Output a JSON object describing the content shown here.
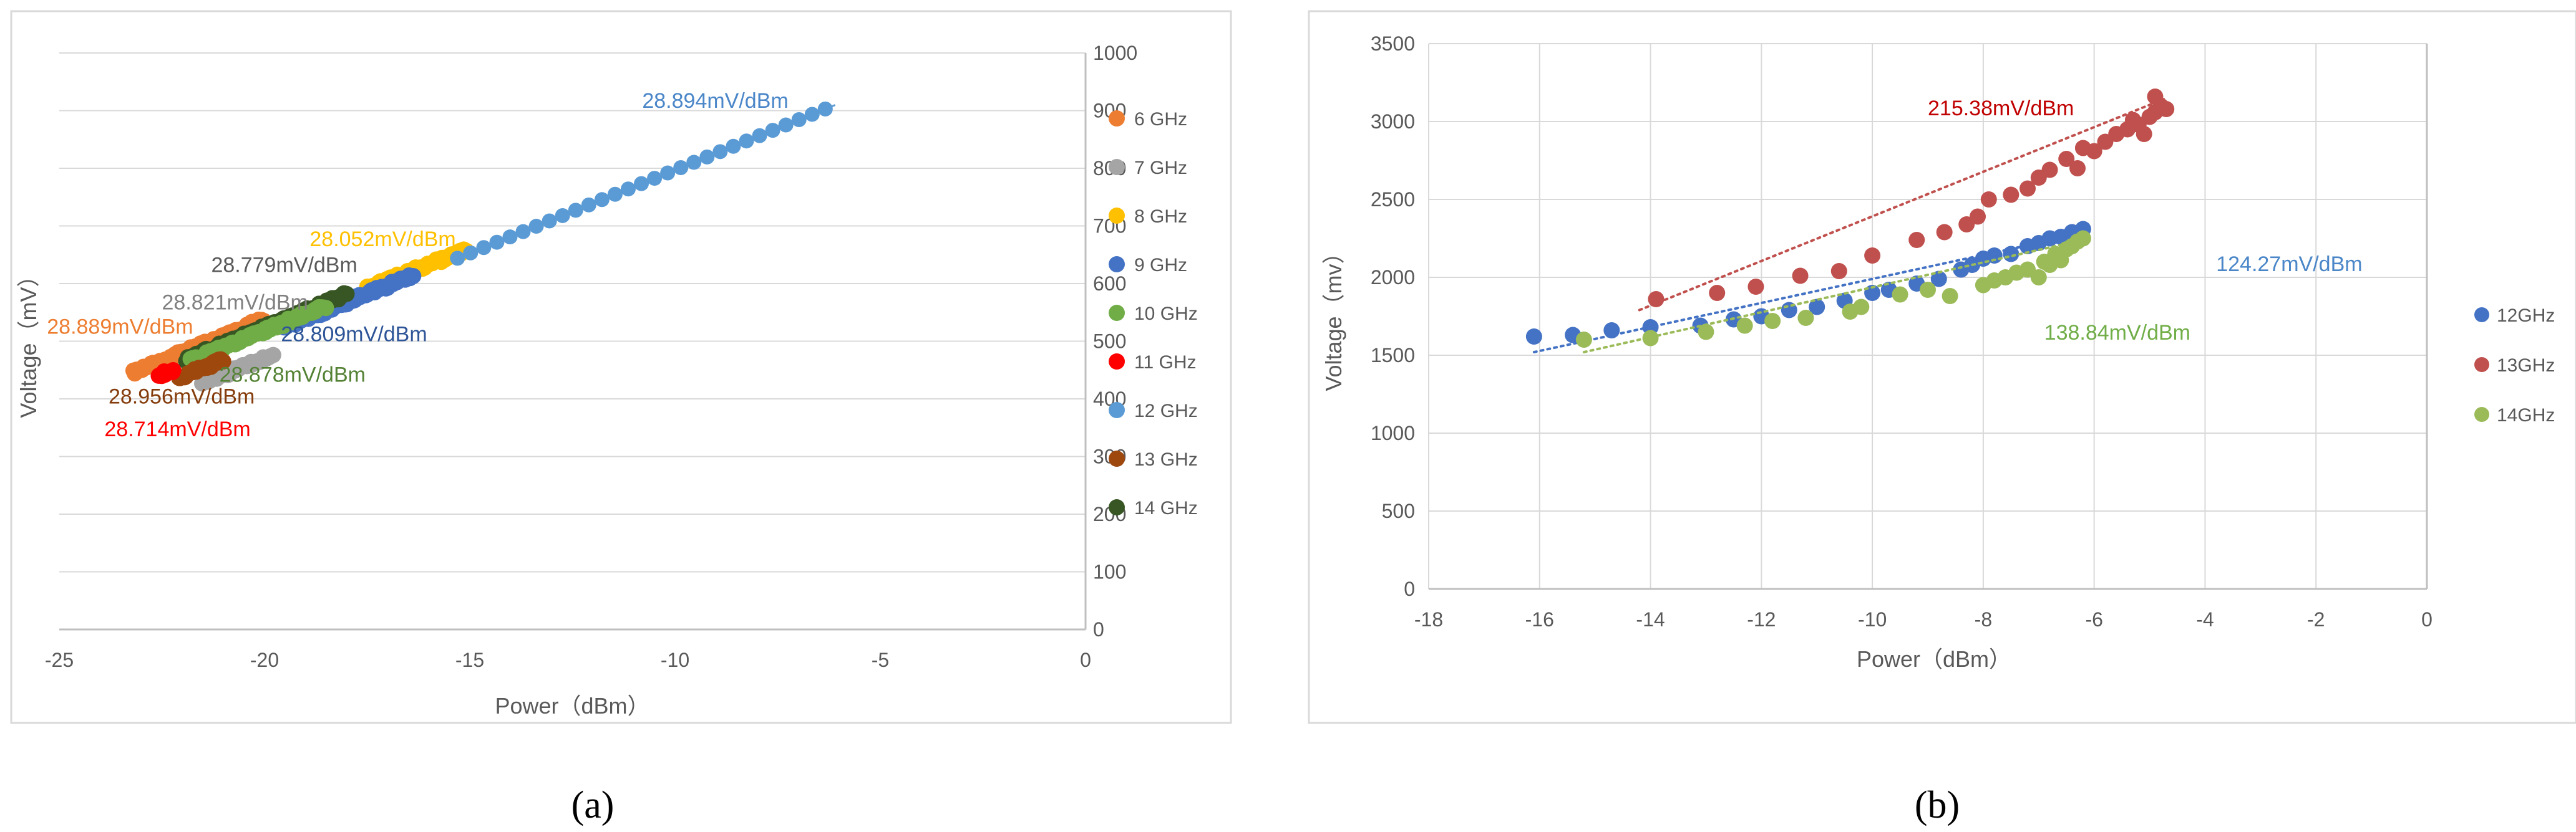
{
  "panels": [
    {
      "label": "(a)"
    },
    {
      "label": "(b)"
    }
  ],
  "chart_data": [
    {
      "type": "scatter",
      "xlabel": "Power（dBm）",
      "ylabel": "Voltage（mV）",
      "xlim": [
        -25,
        0
      ],
      "ylim": [
        0,
        1000
      ],
      "xticks": [
        -25,
        -20,
        -15,
        -10,
        -5,
        0
      ],
      "yticks": [
        0,
        100,
        200,
        300,
        400,
        500,
        600,
        700,
        800,
        900,
        1000
      ],
      "x_tick_labels": [
        "-25",
        "-20",
        "-15",
        "-10",
        "-5",
        "0"
      ],
      "y_tick_labels": [
        "0",
        "100",
        "200",
        "300",
        "400",
        "500",
        "600",
        "700",
        "800",
        "900",
        "1000"
      ],
      "y_axis_side": "right",
      "grid": "horizontal",
      "legend_position": "right",
      "series": [
        {
          "name": "6 GHz",
          "color": "#ed7d31",
          "x_range": [
            -23.2,
            -20.0
          ],
          "slope": 28.889,
          "intercept": 1116,
          "trendline": false,
          "annotation": "28.889mV/dBm"
        },
        {
          "name": "7 GHz",
          "color": "#a5a5a5",
          "x_range": [
            -21.5,
            -19.8
          ],
          "slope": 28.821,
          "intercept": 1047,
          "trendline": false,
          "annotation": "28.821mV/dBm"
        },
        {
          "name": "8 GHz",
          "color": "#ffc000",
          "x_range": [
            -17.5,
            -15.1
          ],
          "slope": 28.052,
          "intercept": 1082,
          "trendline": false,
          "annotation": "28.052mV/dBm"
        },
        {
          "name": "9 GHz",
          "color": "#4472c4",
          "x_range": [
            -19.5,
            -16.4
          ],
          "slope": 28.809,
          "intercept": 1086,
          "trendline": false,
          "annotation": "28.809mV/dBm"
        },
        {
          "name": "10 GHz",
          "color": "#70ad47",
          "x_range": [
            -21.8,
            -18.5
          ],
          "slope": 28.878,
          "intercept": 1095,
          "trendline": false,
          "annotation": "28.878mV/dBm"
        },
        {
          "name": "11 GHz",
          "color": "#ff0000",
          "x_range": [
            -22.6,
            -22.2
          ],
          "slope": 28.714,
          "intercept": 1089,
          "trendline": false,
          "annotation": "28.714mV/dBm"
        },
        {
          "name": "12 GHz",
          "color": "#5b9bd5",
          "x_range": [
            -15.3,
            -6.1
          ],
          "slope": 28.894,
          "intercept": 1086,
          "trendline": true,
          "annotation": "28.894mV/dBm"
        },
        {
          "name": "13 GHz",
          "color": "#9e480e",
          "x_range": [
            -22.1,
            -21.0
          ],
          "slope": 28.956,
          "intercept": 1076,
          "trendline": false,
          "annotation": "28.956mV/dBm"
        },
        {
          "name": "14 GHz",
          "color": "#375623",
          "x_range": [
            -21.9,
            -18.0
          ],
          "slope": 28.779,
          "intercept": 1099,
          "trendline": false,
          "annotation": "28.779mV/dBm"
        }
      ],
      "annotations": [
        {
          "text": "28.894mV/dBm",
          "color": "#4a86c8",
          "x": -10.8,
          "y": 905
        },
        {
          "text": "28.052mV/dBm",
          "color": "#ffc000",
          "x": -18.9,
          "y": 665
        },
        {
          "text": "28.779mV/dBm",
          "color": "#595959",
          "x": -21.3,
          "y": 620
        },
        {
          "text": "28.821mV/dBm",
          "color": "#7f7f7f",
          "x": -22.5,
          "y": 555
        },
        {
          "text": "28.809mV/dBm",
          "color": "#2e5597",
          "x": -19.6,
          "y": 500
        },
        {
          "text": "28.889mV/dBm",
          "color": "#ed7d31",
          "x": -25.3,
          "y": 513
        },
        {
          "text": "28.878mV/dBm",
          "color": "#548235",
          "x": -21.1,
          "y": 430
        },
        {
          "text": "28.956mV/dBm",
          "color": "#843c0c",
          "x": -23.8,
          "y": 392
        },
        {
          "text": "28.714mV/dBm",
          "color": "#ff0000",
          "x": -23.9,
          "y": 335
        }
      ]
    },
    {
      "type": "scatter",
      "xlabel": "Power（dBm）",
      "ylabel": "Voltage（mv）",
      "xlim": [
        -18,
        0
      ],
      "ylim": [
        0,
        3500
      ],
      "xticks": [
        -18,
        -16,
        -14,
        -12,
        -10,
        -8,
        -6,
        -4,
        -2,
        0
      ],
      "yticks": [
        0,
        500,
        1000,
        1500,
        2000,
        2500,
        3000,
        3500
      ],
      "x_tick_labels": [
        "-18",
        "-16",
        "-14",
        "-12",
        "-10",
        "-8",
        "-6",
        "-4",
        "-2",
        "0"
      ],
      "y_tick_labels": [
        "0",
        "500",
        "1000",
        "1500",
        "2000",
        "2500",
        "3000",
        "3500"
      ],
      "grid": "both",
      "legend_position": "right",
      "series": [
        {
          "name": "12GHz",
          "color": "#4472c4",
          "annotation": "124.27mV/dBm",
          "trendline": {
            "x": [
              -16.1,
              -6.1
            ],
            "y": [
              1520,
              2290
            ]
          },
          "points": [
            [
              -16.1,
              1620
            ],
            [
              -15.4,
              1630
            ],
            [
              -14.7,
              1660
            ],
            [
              -14.0,
              1680
            ],
            [
              -13.1,
              1690
            ],
            [
              -12.5,
              1730
            ],
            [
              -12.0,
              1750
            ],
            [
              -11.5,
              1790
            ],
            [
              -11.0,
              1810
            ],
            [
              -10.5,
              1850
            ],
            [
              -10.0,
              1900
            ],
            [
              -9.7,
              1920
            ],
            [
              -9.2,
              1960
            ],
            [
              -8.8,
              1990
            ],
            [
              -8.4,
              2050
            ],
            [
              -8.2,
              2080
            ],
            [
              -8.0,
              2120
            ],
            [
              -7.8,
              2140
            ],
            [
              -7.5,
              2150
            ],
            [
              -7.2,
              2200
            ],
            [
              -7.0,
              2220
            ],
            [
              -6.8,
              2250
            ],
            [
              -6.6,
              2260
            ],
            [
              -6.4,
              2290
            ],
            [
              -6.2,
              2310
            ]
          ]
        },
        {
          "name": "13GHz",
          "color": "#c0504d",
          "annotation": "215.38mV/dBm",
          "trendline": {
            "x": [
              -14.2,
              -4.7
            ],
            "y": [
              1790,
              3150
            ]
          },
          "points": [
            [
              -13.9,
              1860
            ],
            [
              -12.8,
              1900
            ],
            [
              -12.1,
              1940
            ],
            [
              -11.3,
              2010
            ],
            [
              -10.6,
              2040
            ],
            [
              -10.0,
              2140
            ],
            [
              -9.2,
              2240
            ],
            [
              -8.7,
              2290
            ],
            [
              -8.3,
              2340
            ],
            [
              -8.1,
              2390
            ],
            [
              -7.9,
              2500
            ],
            [
              -7.5,
              2530
            ],
            [
              -7.2,
              2570
            ],
            [
              -7.0,
              2640
            ],
            [
              -6.8,
              2690
            ],
            [
              -6.5,
              2760
            ],
            [
              -6.3,
              2700
            ],
            [
              -6.2,
              2830
            ],
            [
              -6.0,
              2810
            ],
            [
              -5.8,
              2870
            ],
            [
              -5.6,
              2920
            ],
            [
              -5.4,
              2950
            ],
            [
              -5.2,
              2980
            ],
            [
              -5.0,
              3030
            ],
            [
              -4.9,
              3060
            ],
            [
              -4.8,
              3100
            ],
            [
              -4.7,
              3080
            ],
            [
              -4.9,
              3160
            ],
            [
              -5.1,
              2920
            ],
            [
              -5.3,
              3010
            ]
          ]
        },
        {
          "name": "14GHz",
          "color": "#9bbb59",
          "annotation": "138.84mV/dBm",
          "trendline": {
            "x": [
              -15.2,
              -6.2
            ],
            "y": [
              1520,
              2240
            ]
          },
          "points": [
            [
              -15.2,
              1600
            ],
            [
              -14.0,
              1610
            ],
            [
              -13.0,
              1650
            ],
            [
              -12.3,
              1690
            ],
            [
              -11.8,
              1720
            ],
            [
              -11.2,
              1740
            ],
            [
              -10.4,
              1780
            ],
            [
              -10.2,
              1810
            ],
            [
              -9.5,
              1890
            ],
            [
              -9.0,
              1920
            ],
            [
              -8.6,
              1880
            ],
            [
              -8.0,
              1950
            ],
            [
              -7.8,
              1980
            ],
            [
              -7.6,
              2000
            ],
            [
              -7.4,
              2030
            ],
            [
              -7.2,
              2050
            ],
            [
              -7.0,
              2000
            ],
            [
              -6.9,
              2100
            ],
            [
              -6.8,
              2080
            ],
            [
              -6.7,
              2150
            ],
            [
              -6.6,
              2110
            ],
            [
              -6.5,
              2180
            ],
            [
              -6.4,
              2200
            ],
            [
              -6.3,
              2230
            ],
            [
              -6.2,
              2250
            ]
          ]
        }
      ],
      "annotations": [
        {
          "text": "215.38mV/dBm",
          "color": "#c00000",
          "x": -9.0,
          "y": 3040
        },
        {
          "text": "124.27mV/dBm",
          "color": "#4a86c8",
          "x": -3.8,
          "y": 2040
        },
        {
          "text": "138.84mV/dBm",
          "color": "#70ad47",
          "x": -6.9,
          "y": 1600
        }
      ]
    }
  ]
}
